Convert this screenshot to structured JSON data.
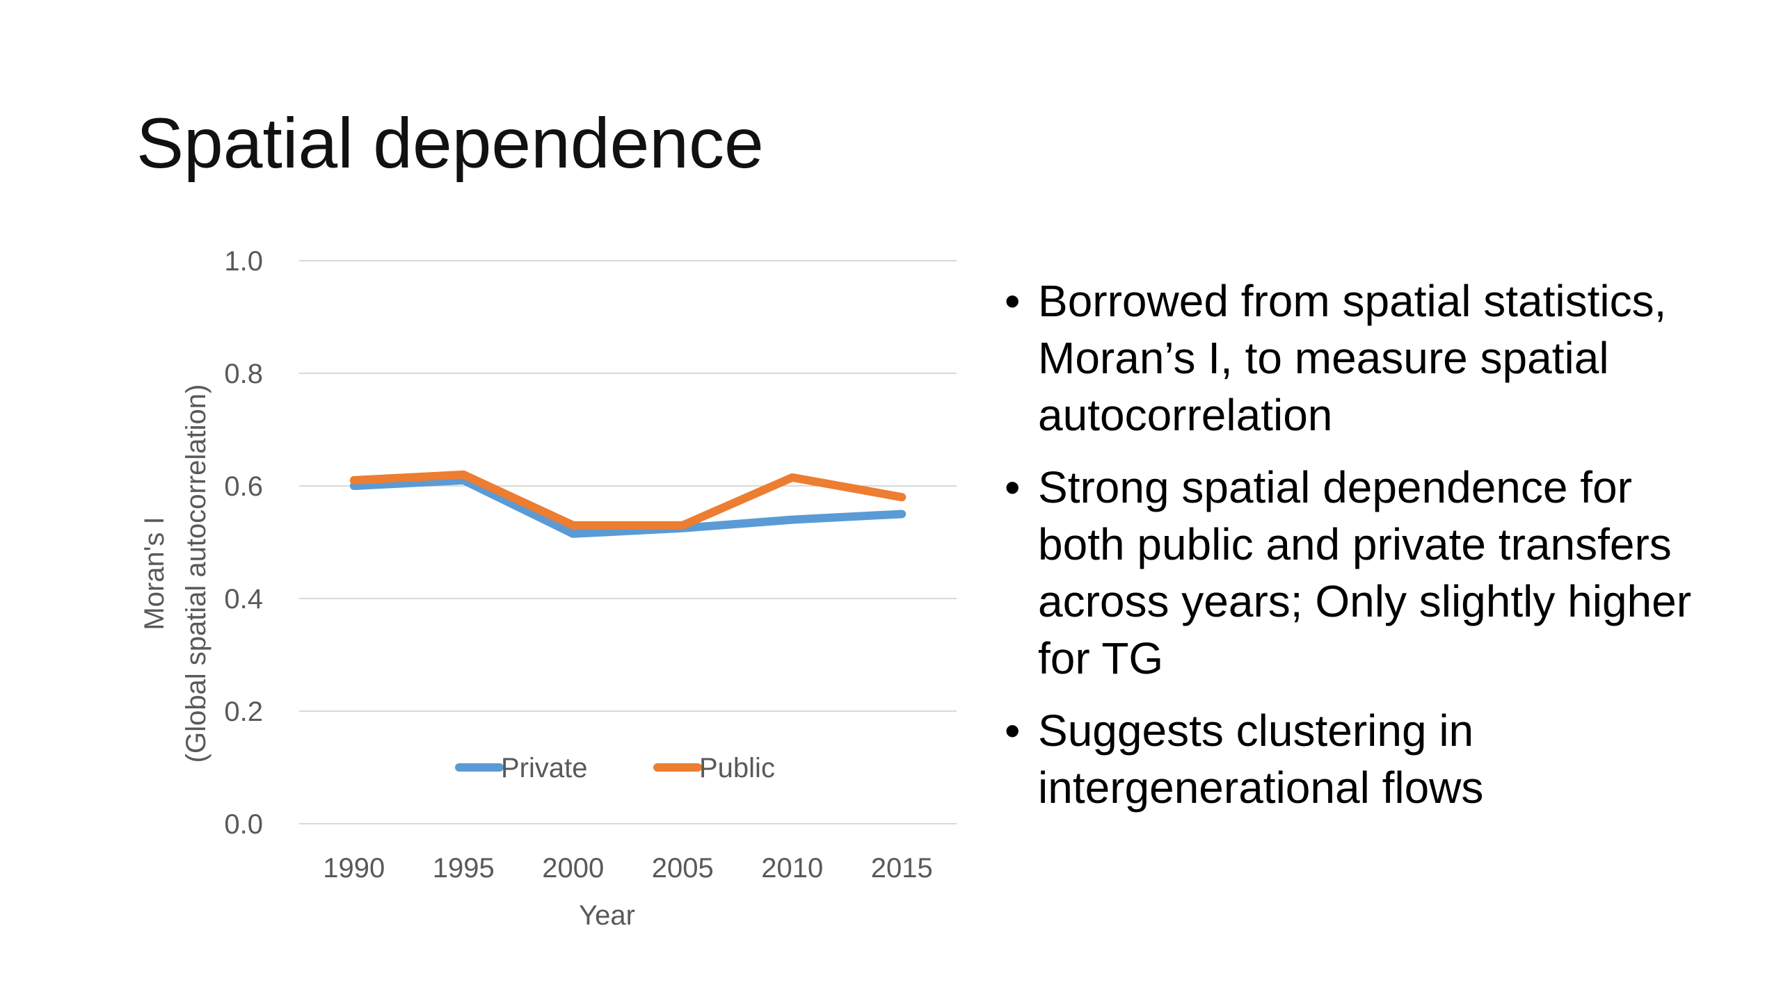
{
  "slide": {
    "title": "Spatial dependence",
    "bullets": [
      "Borrowed from spatial statistics, Moran’s I, to measure spatial autocorrelation",
      "Strong spatial dependence for both public and private transfers across years; Only slightly higher for TG",
      "Suggests clustering in intergenerational flows"
    ],
    "bullet_glyph": "•"
  },
  "chart_data": {
    "type": "line",
    "x": [
      "1990",
      "1995",
      "2000",
      "2005",
      "2010",
      "2015"
    ],
    "series": [
      {
        "name": "Private",
        "color": "#5B9BD5",
        "values": [
          0.6,
          0.61,
          0.515,
          0.525,
          0.54,
          0.55
        ]
      },
      {
        "name": "Public",
        "color": "#ED7D31",
        "values": [
          0.61,
          0.62,
          0.53,
          0.53,
          0.615,
          0.58
        ]
      }
    ],
    "xlabel": "Year",
    "ylabel": [
      "Moran's I",
      "(Global spatial autocorrelation)"
    ],
    "ylim": [
      0,
      1.0
    ],
    "yticks": [
      "0.0",
      "0.2",
      "0.4",
      "0.6",
      "0.8",
      "1.0"
    ],
    "grid": true,
    "legend_position": "inside-bottom-center",
    "gridline_color": "#D9D9D9",
    "text_color": "#595959"
  }
}
